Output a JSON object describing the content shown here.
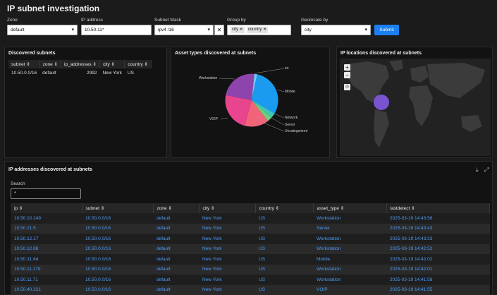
{
  "page_title": "IP subnet investigation",
  "filters": {
    "zone": {
      "label": "Zone",
      "value": "default"
    },
    "ip": {
      "label": "IP address",
      "value": "10.50.11*"
    },
    "mask": {
      "label": "Subnet Mask",
      "value": "ipv4 /16"
    },
    "group_by": {
      "label": "Group by",
      "chips": [
        "city",
        "country"
      ]
    },
    "geolocate": {
      "label": "Geolocate by",
      "value": "city"
    },
    "submit_label": "Submit"
  },
  "subnets_panel": {
    "title": "Discovered subnets",
    "columns": [
      "subnet ⇕",
      "zone ⇕",
      "ip_addresses ⇕",
      "city ⇕",
      "country ⇕"
    ],
    "rows": [
      [
        "10.50.0.0/16",
        "default",
        "2992",
        "New York",
        "US"
      ]
    ]
  },
  "asset_panel": {
    "title": "Asset types discovered at subnets",
    "legend": [
      "iot",
      "Mobile",
      "Network",
      "Server",
      "Uncategorized",
      "VOIP",
      "Workstation"
    ],
    "colors": {
      "iot": "#7bc7ef",
      "Mobile": "#1a9bf0",
      "Network": "#3fc9b4",
      "Server": "#6fd07a",
      "Uncategorized": "#f2647a",
      "VOIP": "#e8458e",
      "Workstation": "#8e44ad"
    }
  },
  "map_panel": {
    "title": "IP locations discovered at subnets"
  },
  "ip_panel": {
    "title": "IP addresses discovered at subnets",
    "search_label": "Search",
    "search_value": "*",
    "columns": [
      "ip ⇕",
      "subnet ⇕",
      "zone ⇕",
      "city ⇕",
      "country ⇕",
      "asset_type ⇕",
      "lastdetect ⇕"
    ],
    "rows": [
      [
        "10.50.10.249",
        "10.50.0.0/16",
        "default",
        "New York",
        "US",
        "Workstation",
        "2025-03-19 14:43:56"
      ],
      [
        "10.50.21.5",
        "10.50.0.0/16",
        "default",
        "New York",
        "US",
        "Server",
        "2025-03-19 14:43:43"
      ],
      [
        "10.50.12.17",
        "10.50.0.0/16",
        "default",
        "New York",
        "US",
        "Workstation",
        "2025-03-19 14:43:23"
      ],
      [
        "10.50.12.88",
        "10.50.0.0/16",
        "default",
        "New York",
        "US",
        "Workstation",
        "2025-03-19 14:42:52"
      ],
      [
        "10.50.31.64",
        "10.50.0.0/16",
        "default",
        "New York",
        "US",
        "Mobile",
        "2025-03-19 14:42:02"
      ],
      [
        "10.50.11.179",
        "10.50.0.0/16",
        "default",
        "New York",
        "US",
        "Workstation",
        "2025-03-19 14:42:01"
      ],
      [
        "10.50.11.71",
        "10.50.0.0/16",
        "default",
        "New York",
        "US",
        "Workstation",
        "2025-03-19 14:41:58"
      ],
      [
        "10.50.40.221",
        "10.50.0.0/16",
        "default",
        "New York",
        "US",
        "VOIP",
        "2025-03-19 14:41:55"
      ]
    ]
  }
}
